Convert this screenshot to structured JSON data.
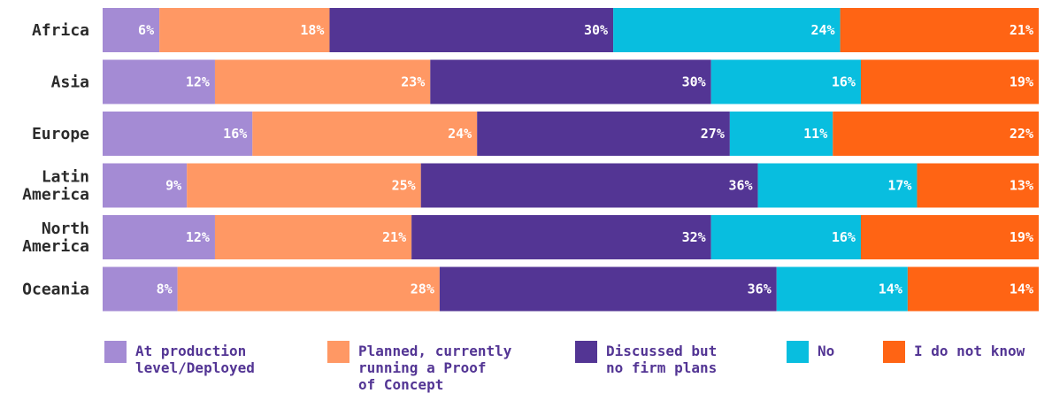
{
  "chart_data": {
    "type": "bar",
    "orientation": "horizontal",
    "stacked": true,
    "normalized": true,
    "categories": [
      "Africa",
      "Asia",
      "Europe",
      "Latin\nAmerica",
      "North\nAmerica",
      "Oceania"
    ],
    "series": [
      {
        "name": "At production level/Deployed",
        "color": "#a48bd4",
        "values": [
          6,
          12,
          16,
          9,
          12,
          8
        ]
      },
      {
        "name": "Planned, currently running a Proof of Concept",
        "color": "#ff9864",
        "values": [
          18,
          23,
          24,
          25,
          21,
          28
        ]
      },
      {
        "name": "Discussed but no firm plans",
        "color": "#533594",
        "values": [
          30,
          30,
          27,
          36,
          32,
          36
        ]
      },
      {
        "name": "No",
        "color": "#08bedf",
        "values": [
          24,
          16,
          11,
          17,
          16,
          14
        ]
      },
      {
        "name": "I do not know",
        "color": "#ff6414",
        "values": [
          21,
          19,
          22,
          13,
          19,
          14
        ]
      }
    ],
    "legend": {
      "placement": "bottom",
      "labels": [
        [
          "At production",
          "level/Deployed"
        ],
        [
          "Planned, currently",
          "running a Proof",
          "of Concept"
        ],
        [
          "Discussed but",
          "no firm plans"
        ],
        [
          "No"
        ],
        [
          "I do not know"
        ]
      ]
    },
    "value_suffix": "%",
    "grid": false
  }
}
